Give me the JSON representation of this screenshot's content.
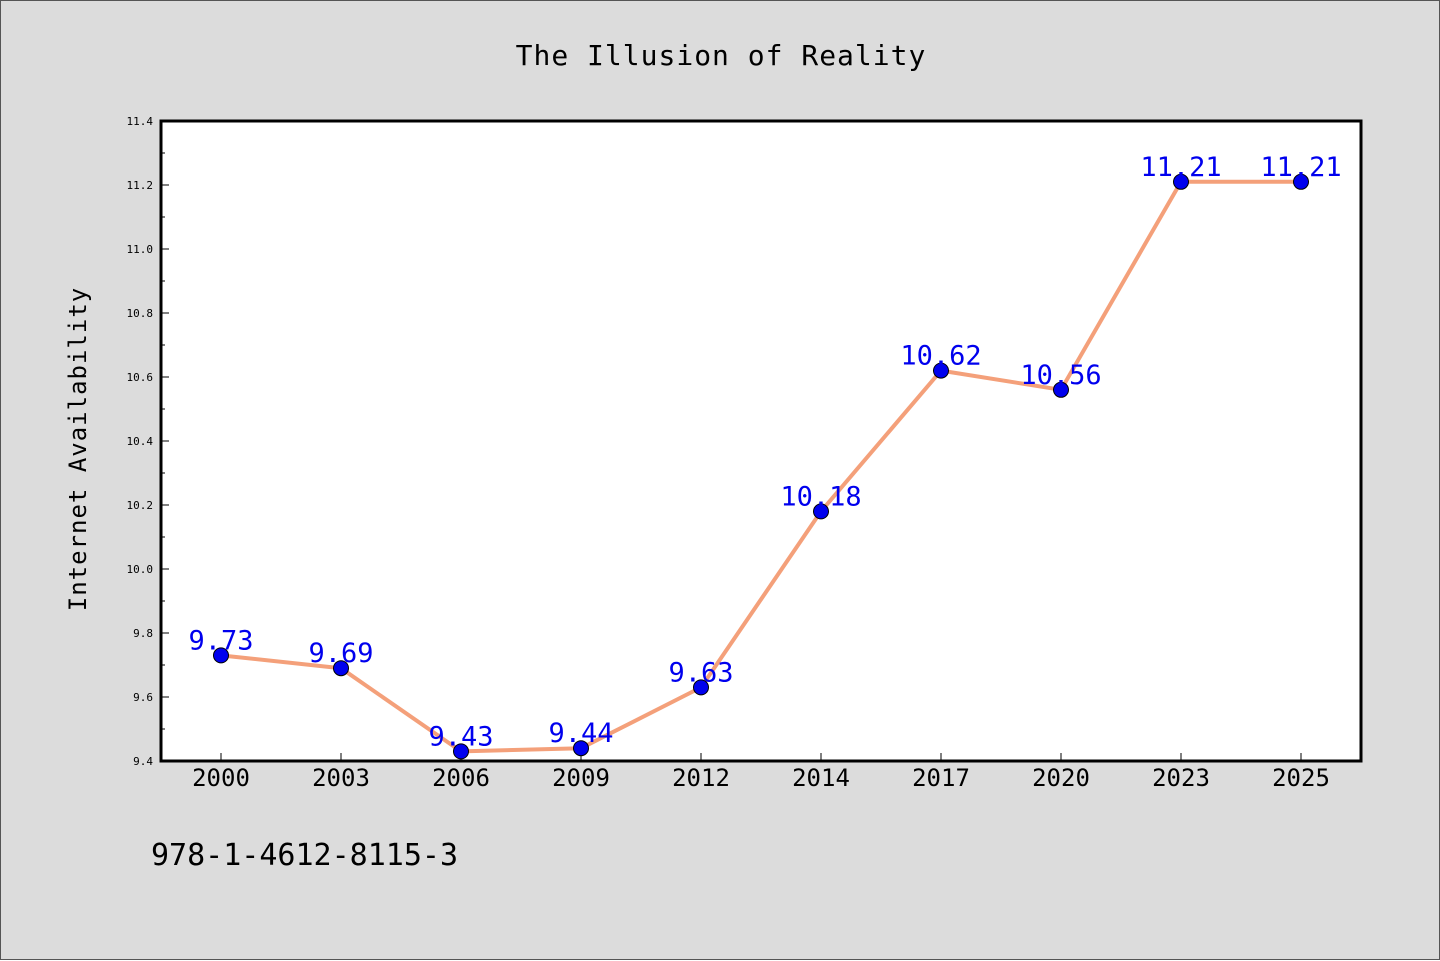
{
  "chart_data": {
    "type": "line",
    "title": "The Illusion of Reality",
    "xlabel": "",
    "ylabel": "Internet Availability",
    "categories": [
      "2000",
      "2003",
      "2006",
      "2009",
      "2012",
      "2014",
      "2017",
      "2020",
      "2023",
      "2025"
    ],
    "series": [
      {
        "values": [
          9.73,
          9.69,
          9.43,
          9.44,
          9.63,
          10.18,
          10.62,
          10.56,
          11.21,
          11.21
        ]
      }
    ],
    "value_labels": [
      "9.73",
      "9.69",
      "9.43",
      "9.44",
      "9.63",
      "10.18",
      "10.62",
      "10.56",
      "11.21",
      "11.21"
    ],
    "ylim": [
      9.4,
      11.4
    ],
    "yticks": [
      9.4,
      9.6,
      9.8,
      10.0,
      10.2,
      10.4,
      10.6,
      10.8,
      11.0,
      11.2,
      11.4
    ],
    "ytick_labels": [
      "9.4",
      "9.6",
      "9.8",
      "10.0",
      "10.2",
      "10.4",
      "10.6",
      "10.8",
      "11.0",
      "11.2",
      "11.4"
    ],
    "grid": false,
    "legend": "none",
    "colors": {
      "line": "#f4a07a",
      "marker": "#0000ee",
      "data_label": "#0000ee",
      "plot_background": "#ffffff",
      "page_background": "#dcdcdc",
      "axis": "#000000",
      "text": "#000000"
    }
  },
  "footer": {
    "isbn": "978-1-4612-8115-3"
  }
}
